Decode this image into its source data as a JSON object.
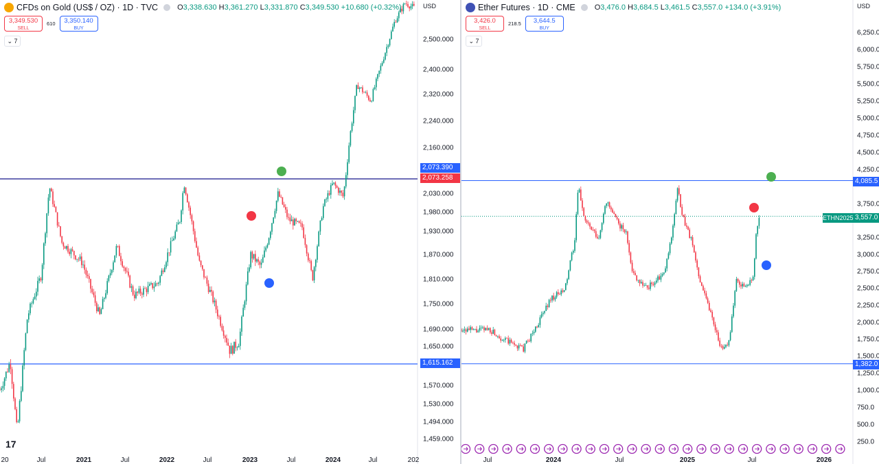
{
  "left": {
    "title": "CFDs on Gold (US$ / OZ) · 1D · TVC",
    "ohlc": {
      "o_label": "O",
      "o": "3,338.630",
      "h_label": "H",
      "h": "3,361.270",
      "l_label": "L",
      "l": "3,331.870",
      "c_label": "C",
      "c": "3,349.530",
      "change": "+10.680 (+0.32%)"
    },
    "sell_price": "3,349.530",
    "sell_label": "SELL",
    "buy_price": "3,350.140",
    "buy_label": "BUY",
    "spread": "610",
    "collapse_label": "7",
    "currency": "USD",
    "price_ticks": [
      "2,500.000",
      "2,400.000",
      "2,320.000",
      "2,240.000",
      "2,160.000",
      "2,030.000",
      "1,980.000",
      "1,930.000",
      "1,870.000",
      "1,810.000",
      "1,750.000",
      "1,690.000",
      "1,650.000",
      "1,570.000",
      "1,530.000",
      "1,494.000",
      "1,459.000"
    ],
    "price_tick_values": [
      2500,
      2400,
      2320,
      2240,
      2160,
      2030,
      1980,
      1930,
      1870,
      1810,
      1750,
      1690,
      1650,
      1570,
      1530,
      1494,
      1459
    ],
    "time_ticks": [
      "20",
      "Jul",
      "2021",
      "Jul",
      "2022",
      "Jul",
      "2023",
      "Jul",
      "2024",
      "Jul",
      "202"
    ],
    "level_high": "2,073.390",
    "level_high_value": 2073.39,
    "level_last": "2,073.258",
    "level_low": "1,615.162",
    "level_low_value": 1615.162,
    "logo": "17"
  },
  "right": {
    "title": "Ether Futures · 1D · CME",
    "ohlc": {
      "o_label": "O",
      "o": "3,476.0",
      "h_label": "H",
      "h": "3,684.5",
      "l_label": "L",
      "l": "3,461.5",
      "c_label": "C",
      "c": "3,557.0",
      "change": "+134.0 (+3.91%)"
    },
    "sell_price": "3,426.0",
    "sell_label": "SELL",
    "buy_price": "3,644.5",
    "buy_label": "BUY",
    "spread": "218.5",
    "collapse_label": "7",
    "currency": "USD",
    "price_ticks": [
      "6,250.0",
      "6,000.0",
      "5,750.0",
      "5,500.0",
      "5,250.0",
      "5,000.0",
      "4,750.0",
      "4,500.0",
      "4,250.0",
      "3,750.0",
      "3,250.0",
      "3,000.0",
      "2,750.0",
      "2,500.0",
      "2,250.0",
      "2,000.0",
      "1,750.0",
      "1,500.0",
      "1,250.0",
      "1,000.0",
      "750.0",
      "500.0",
      "250.0"
    ],
    "price_tick_values": [
      6250,
      6000,
      5750,
      5500,
      5250,
      5000,
      4750,
      4500,
      4250,
      3750,
      3250,
      3000,
      2750,
      2500,
      2250,
      2000,
      1750,
      1500,
      1250,
      1000,
      750,
      500,
      250
    ],
    "time_ticks": [
      "Jul",
      "2024",
      "Jul",
      "2025",
      "Jul",
      "2026"
    ],
    "level_high": "4,085.5",
    "level_high_value": 4085.5,
    "level_low": "1,382.0",
    "level_low_value": 1382.0,
    "last_symbol": "ETHN2025",
    "last_price": "3,557.0",
    "last_price_value": 3557.0
  },
  "colors": {
    "up": "#089981",
    "down": "#f23645",
    "blue_line": "#2962ff",
    "navy_line": "#3b3b9e",
    "green_dot": "#4caf50",
    "red_dot": "#f23645",
    "blue_dot": "#2962ff",
    "roll_icon": "#9c27b0"
  }
}
